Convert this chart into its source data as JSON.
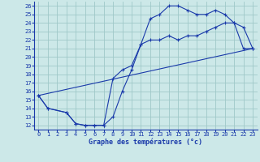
{
  "xlabel": "Graphe des températures (°c)",
  "xlim": [
    -0.5,
    23.5
  ],
  "ylim": [
    11.5,
    26.5
  ],
  "yticks": [
    12,
    13,
    14,
    15,
    16,
    17,
    18,
    19,
    20,
    21,
    22,
    23,
    24,
    25,
    26
  ],
  "xticks": [
    0,
    1,
    2,
    3,
    4,
    5,
    6,
    7,
    8,
    9,
    10,
    11,
    12,
    13,
    14,
    15,
    16,
    17,
    18,
    19,
    20,
    21,
    22,
    23
  ],
  "bg_color": "#cce8e8",
  "grid_color": "#9fc8c8",
  "line_color": "#1a3aaa",
  "curve1_x": [
    0,
    1,
    3,
    4,
    5,
    6,
    7,
    8,
    9,
    10,
    11,
    12,
    13,
    14,
    15,
    16,
    17,
    18,
    19,
    20,
    21,
    22,
    23
  ],
  "curve1_y": [
    15.5,
    14.0,
    13.5,
    12.2,
    12.0,
    12.0,
    12.0,
    13.0,
    16.0,
    18.5,
    21.5,
    24.5,
    25.0,
    26.0,
    26.0,
    25.5,
    25.0,
    25.0,
    25.5,
    25.0,
    24.0,
    23.5,
    21.0
  ],
  "curve2_x": [
    0,
    1,
    3,
    4,
    5,
    6,
    7,
    8,
    9,
    10,
    11,
    12,
    13,
    14,
    15,
    16,
    17,
    18,
    19,
    20,
    21,
    22,
    23
  ],
  "curve2_y": [
    15.5,
    14.0,
    13.5,
    12.2,
    12.0,
    12.0,
    12.0,
    17.5,
    18.5,
    19.0,
    21.5,
    22.0,
    22.0,
    22.5,
    22.0,
    22.5,
    22.5,
    23.0,
    23.5,
    24.0,
    24.0,
    21.0,
    21.0
  ],
  "curve3_x": [
    0,
    23
  ],
  "curve3_y": [
    15.5,
    21.0
  ]
}
